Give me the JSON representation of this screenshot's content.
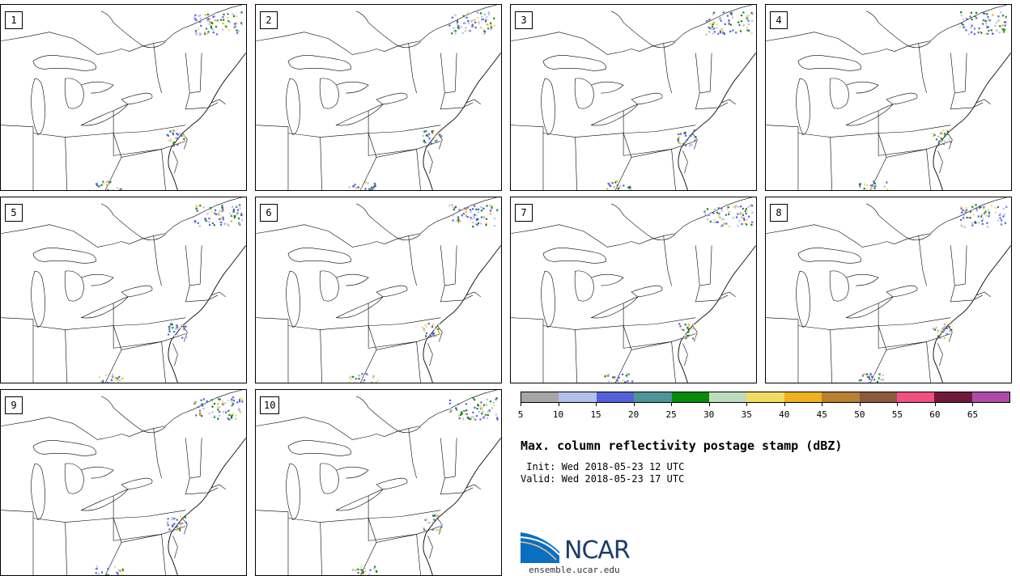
{
  "panels": [
    {
      "label": "1"
    },
    {
      "label": "2"
    },
    {
      "label": "3"
    },
    {
      "label": "4"
    },
    {
      "label": "5"
    },
    {
      "label": "6"
    },
    {
      "label": "7"
    },
    {
      "label": "8"
    },
    {
      "label": "9"
    },
    {
      "label": "10"
    }
  ],
  "colorbar": {
    "colors": [
      "#a6a6a6",
      "#b4c0ec",
      "#5461d8",
      "#4f9499",
      "#0a8a0a",
      "#bcdcbc",
      "#f0dc64",
      "#f0b020",
      "#b88030",
      "#8c5a3c",
      "#f05082",
      "#6e1a3c",
      "#b04aa8"
    ],
    "tick_labels": [
      "5",
      "10",
      "15",
      "20",
      "25",
      "30",
      "35",
      "40",
      "45",
      "50",
      "55",
      "60",
      "65"
    ]
  },
  "title": "Max. column reflectivity postage stamp (dBZ)",
  "init": " Init: Wed 2018-05-23 12 UTC",
  "valid": "Valid: Wed 2018-05-23 17 UTC",
  "logo": {
    "text": "NCAR",
    "colors": [
      "#0a6fc2",
      "#1b3d6e"
    ]
  },
  "url": "ensemble.ucar.edu"
}
